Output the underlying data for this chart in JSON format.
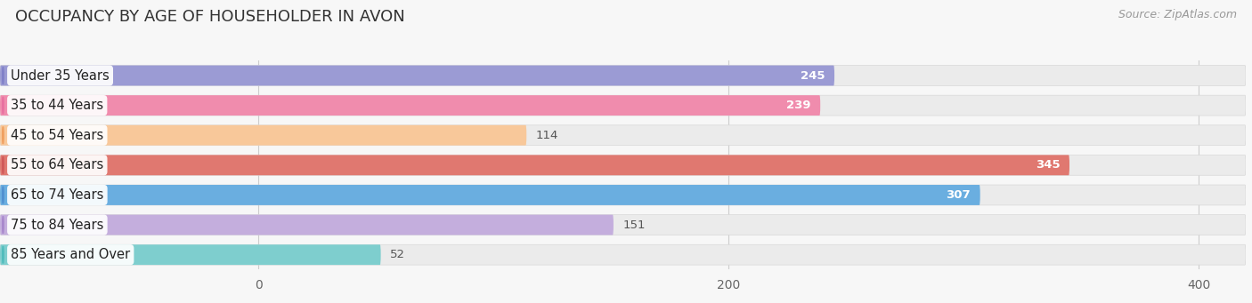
{
  "title": "OCCUPANCY BY AGE OF HOUSEHOLDER IN AVON",
  "source_text": "Source: ZipAtlas.com",
  "categories": [
    "Under 35 Years",
    "35 to 44 Years",
    "45 to 54 Years",
    "55 to 64 Years",
    "65 to 74 Years",
    "75 to 84 Years",
    "85 Years and Over"
  ],
  "values": [
    245,
    239,
    114,
    345,
    307,
    151,
    52
  ],
  "bar_colors": [
    "#9b9bd4",
    "#f08cad",
    "#f8c89a",
    "#e07870",
    "#6aaee0",
    "#c4aedd",
    "#7ecece"
  ],
  "circle_colors": [
    "#8080c8",
    "#e870a0",
    "#f0a060",
    "#d05858",
    "#5090d0",
    "#a888cc",
    "#50bcbc"
  ],
  "xlim_min": -110,
  "xlim_max": 420,
  "xticks": [
    0,
    200,
    400
  ],
  "background_color": "#f7f7f7",
  "bar_bg_color": "#ebebeb",
  "title_fontsize": 13,
  "source_fontsize": 9,
  "label_fontsize": 10.5,
  "value_fontsize": 9.5,
  "bar_height": 0.68,
  "bar_gap": 0.08
}
